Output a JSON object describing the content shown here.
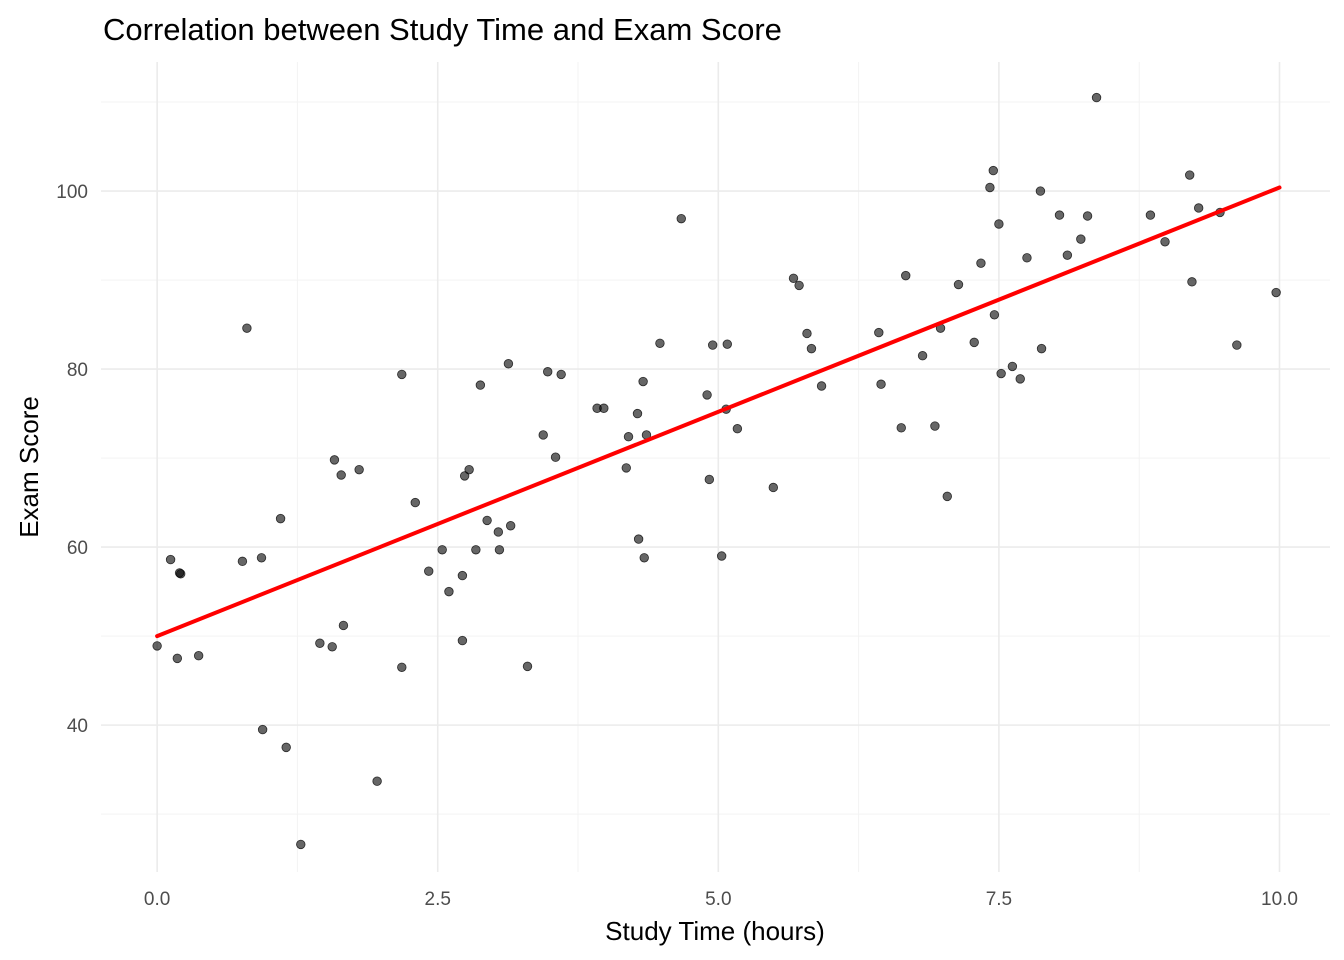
{
  "chart_data": {
    "type": "scatter",
    "title": "Correlation between Study Time and Exam Score",
    "xlabel": "Study Time (hours)",
    "ylabel": "Exam Score",
    "xlim": [
      -0.5,
      10.45
    ],
    "ylim": [
      23.5,
      114.5
    ],
    "x_ticks": [
      0.0,
      2.5,
      5.0,
      7.5,
      10.0
    ],
    "x_tick_labels": [
      "0.0",
      "2.5",
      "5.0",
      "7.5",
      "10.0"
    ],
    "y_ticks": [
      40,
      60,
      80,
      100
    ],
    "y_tick_labels": [
      "40",
      "60",
      "80",
      "100"
    ],
    "grid": true,
    "point_color": "#000000",
    "trend_color": "#ff0000",
    "trend_line": {
      "x": [
        0.0,
        10.0
      ],
      "y": [
        50.0,
        100.4
      ]
    },
    "points": [
      [
        0.0,
        48.9
      ],
      [
        0.12,
        58.6
      ],
      [
        0.18,
        47.5
      ],
      [
        0.2,
        57.1
      ],
      [
        0.21,
        57.0
      ],
      [
        0.37,
        47.8
      ],
      [
        0.76,
        58.4
      ],
      [
        0.8,
        84.6
      ],
      [
        0.93,
        58.8
      ],
      [
        0.94,
        39.5
      ],
      [
        1.1,
        63.2
      ],
      [
        1.15,
        37.5
      ],
      [
        1.28,
        26.6
      ],
      [
        1.45,
        49.2
      ],
      [
        1.56,
        48.8
      ],
      [
        1.58,
        69.8
      ],
      [
        1.64,
        68.1
      ],
      [
        1.66,
        51.2
      ],
      [
        1.8,
        68.7
      ],
      [
        1.96,
        33.7
      ],
      [
        2.18,
        79.4
      ],
      [
        2.18,
        46.5
      ],
      [
        2.3,
        65.0
      ],
      [
        2.42,
        57.3
      ],
      [
        2.54,
        59.7
      ],
      [
        2.6,
        55.0
      ],
      [
        2.72,
        56.8
      ],
      [
        2.72,
        49.5
      ],
      [
        2.74,
        68.0
      ],
      [
        2.78,
        68.7
      ],
      [
        2.84,
        59.7
      ],
      [
        2.88,
        78.2
      ],
      [
        2.94,
        63.0
      ],
      [
        3.04,
        61.7
      ],
      [
        3.05,
        59.7
      ],
      [
        3.13,
        80.6
      ],
      [
        3.15,
        62.4
      ],
      [
        3.3,
        46.6
      ],
      [
        3.44,
        72.6
      ],
      [
        3.48,
        79.7
      ],
      [
        3.55,
        70.1
      ],
      [
        3.6,
        79.4
      ],
      [
        3.92,
        75.6
      ],
      [
        3.98,
        75.6
      ],
      [
        4.18,
        68.9
      ],
      [
        4.2,
        72.4
      ],
      [
        4.28,
        75.0
      ],
      [
        4.29,
        60.9
      ],
      [
        4.33,
        78.6
      ],
      [
        4.34,
        58.8
      ],
      [
        4.36,
        72.6
      ],
      [
        4.48,
        82.9
      ],
      [
        4.67,
        96.9
      ],
      [
        4.9,
        77.1
      ],
      [
        4.92,
        67.6
      ],
      [
        4.95,
        82.7
      ],
      [
        5.03,
        59.0
      ],
      [
        5.07,
        75.5
      ],
      [
        5.08,
        82.8
      ],
      [
        5.17,
        73.3
      ],
      [
        5.49,
        66.7
      ],
      [
        5.67,
        90.2
      ],
      [
        5.72,
        89.4
      ],
      [
        5.79,
        84.0
      ],
      [
        5.83,
        82.3
      ],
      [
        5.92,
        78.1
      ],
      [
        6.43,
        84.1
      ],
      [
        6.45,
        78.3
      ],
      [
        6.63,
        73.4
      ],
      [
        6.67,
        90.5
      ],
      [
        6.82,
        81.5
      ],
      [
        6.93,
        73.6
      ],
      [
        6.98,
        84.6
      ],
      [
        7.04,
        65.7
      ],
      [
        7.14,
        89.5
      ],
      [
        7.28,
        83.0
      ],
      [
        7.34,
        91.9
      ],
      [
        7.42,
        100.4
      ],
      [
        7.45,
        102.3
      ],
      [
        7.46,
        86.1
      ],
      [
        7.5,
        96.3
      ],
      [
        7.52,
        79.5
      ],
      [
        7.62,
        80.3
      ],
      [
        7.69,
        78.9
      ],
      [
        7.75,
        92.5
      ],
      [
        7.87,
        100.0
      ],
      [
        7.88,
        82.3
      ],
      [
        8.04,
        97.3
      ],
      [
        8.11,
        92.8
      ],
      [
        8.23,
        94.6
      ],
      [
        8.29,
        97.2
      ],
      [
        8.37,
        110.5
      ],
      [
        8.85,
        97.3
      ],
      [
        8.98,
        94.3
      ],
      [
        9.2,
        101.8
      ],
      [
        9.22,
        89.8
      ],
      [
        9.28,
        98.1
      ],
      [
        9.47,
        97.6
      ],
      [
        9.62,
        82.7
      ],
      [
        9.97,
        88.6
      ]
    ]
  }
}
